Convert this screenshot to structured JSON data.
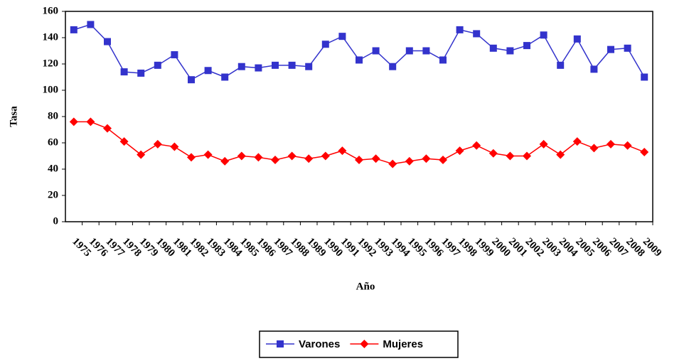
{
  "chart_data": {
    "type": "line",
    "x_label": "Año",
    "y_label": "Tasa",
    "categories": [
      "1975",
      "1976",
      "1977",
      "1978",
      "1979",
      "1980",
      "1981",
      "1982",
      "1983",
      "1984",
      "1985",
      "1986",
      "1987",
      "1988",
      "1989",
      "1990",
      "1991",
      "1992",
      "1993",
      "1994",
      "1995",
      "1996",
      "1997",
      "1998",
      "1999",
      "2000",
      "2001",
      "2002",
      "2003",
      "2004",
      "2005",
      "2006",
      "2007",
      "2008",
      "2009"
    ],
    "series": [
      {
        "name": "Varones",
        "color": "#3333cc",
        "marker": "square",
        "values": [
          146,
          150,
          137,
          114,
          113,
          119,
          127,
          108,
          115,
          110,
          118,
          117,
          119,
          119,
          118,
          135,
          141,
          123,
          130,
          118,
          130,
          130,
          123,
          146,
          143,
          132,
          130,
          134,
          142,
          119,
          139,
          116,
          131,
          132,
          110
        ]
      },
      {
        "name": "Mujeres",
        "color": "#ff0000",
        "marker": "diamond",
        "values": [
          76,
          76,
          71,
          61,
          51,
          59,
          57,
          49,
          51,
          46,
          50,
          49,
          47,
          50,
          48,
          50,
          54,
          47,
          48,
          44,
          46,
          48,
          47,
          54,
          58,
          52,
          50,
          50,
          59,
          51,
          61,
          56,
          59,
          58,
          53
        ]
      }
    ],
    "ylim": [
      0,
      160
    ],
    "yticks": [
      0,
      20,
      40,
      60,
      80,
      100,
      120,
      140,
      160
    ],
    "grid": false
  }
}
